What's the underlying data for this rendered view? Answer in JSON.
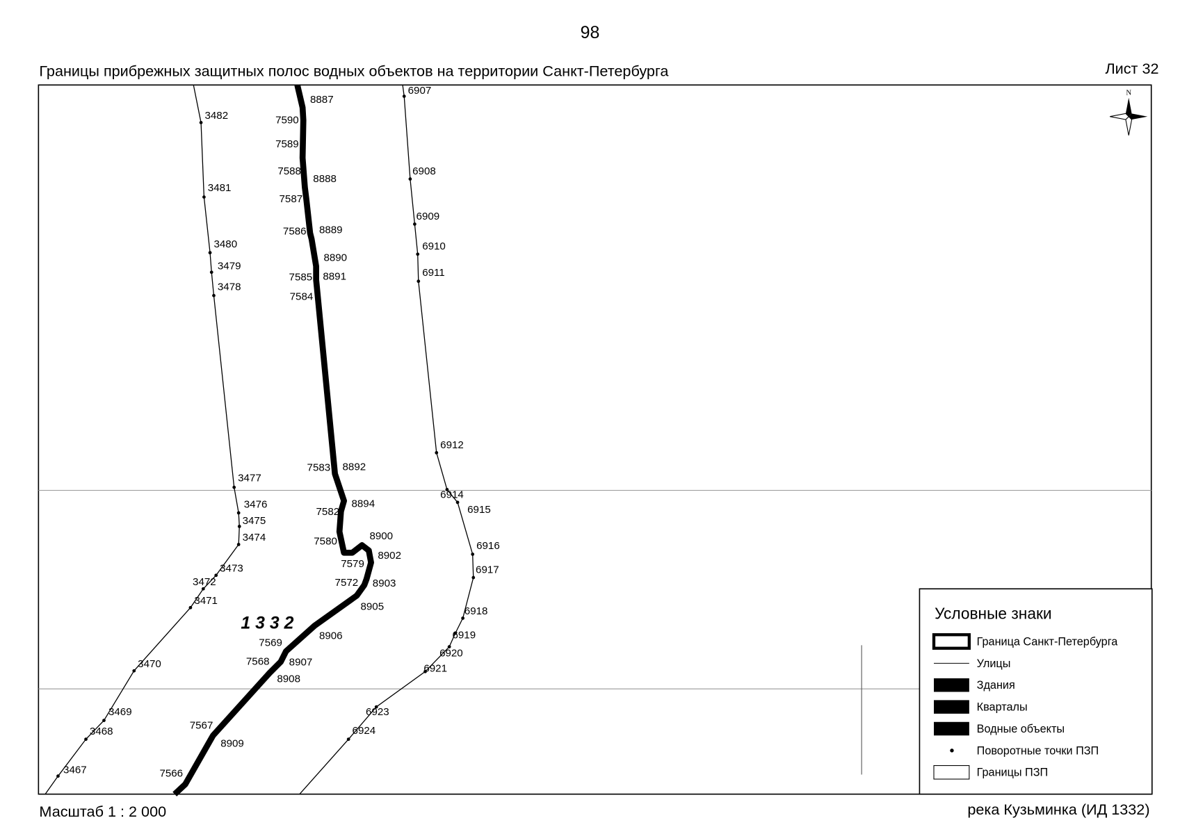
{
  "page_number": "98",
  "title": "Границы прибрежных защитных полос водных объектов на территории Санкт-Петербурга",
  "sheet": "Лист 32",
  "scale": "Масштаб 1 : 2 000",
  "river": "река Кузьминка (ИД 1332)",
  "map_label": "1 3 3 2",
  "compass": "N",
  "legend": {
    "title": "Условные знаки",
    "items": [
      "Граница Санкт-Петербурга",
      "Улицы",
      "Здания",
      "Кварталы",
      "Водные объекты",
      "Поворотные точки ПЗП",
      "Границы ПЗП"
    ]
  },
  "points": [
    "3482",
    "3481",
    "3480",
    "3479",
    "3478",
    "3477",
    "3476",
    "3475",
    "3474",
    "3473",
    "3472",
    "3471",
    "3470",
    "3469",
    "3468",
    "3467",
    "6907",
    "6908",
    "6909",
    "6910",
    "6911",
    "6912",
    "6914",
    "6915",
    "6916",
    "6917",
    "6918",
    "6919",
    "6920",
    "6921",
    "6923",
    "6924",
    "8887",
    "7590",
    "7589",
    "7588",
    "8888",
    "7587",
    "7586",
    "8889",
    "8890",
    "7585",
    "8891",
    "7584",
    "7583",
    "8892",
    "8894",
    "7582",
    "7580",
    "8900",
    "8902",
    "7579",
    "7572",
    "8903",
    "8905",
    "7569",
    "8906",
    "7568",
    "8907",
    "8908",
    "7567",
    "8909",
    "7566"
  ]
}
